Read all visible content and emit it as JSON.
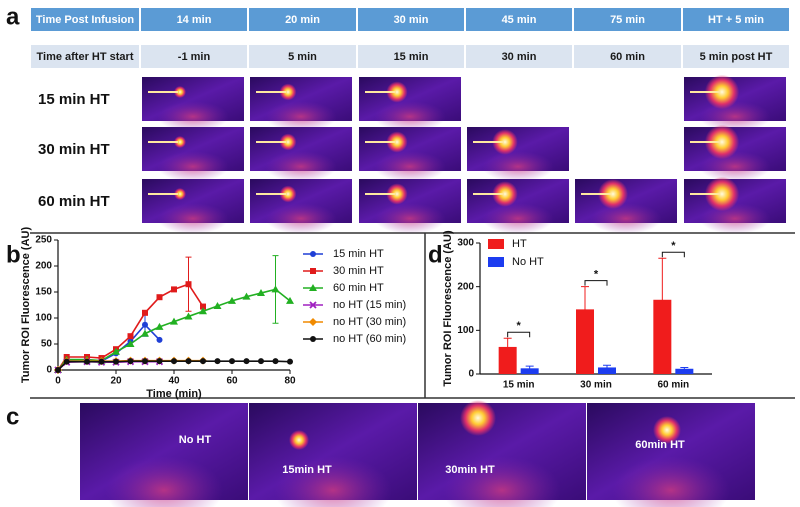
{
  "panel_a": {
    "label": "a",
    "header": [
      "Time Post Infusion",
      "14 min",
      "20 min",
      "30 min",
      "45 min",
      "75 min",
      "HT + 5 min"
    ],
    "subheader": [
      "Time after HT start",
      "-1 min",
      "5 min",
      "15 min",
      "30 min",
      "60 min",
      "5 min post HT"
    ],
    "rows": [
      "15 min HT",
      "30 min HT",
      "60 min HT"
    ]
  },
  "panel_c": {
    "label": "c",
    "images": [
      "No HT",
      "15min HT",
      "30min HT",
      "60min HT"
    ]
  },
  "chart_data": [
    {
      "label": "b",
      "type": "line",
      "x_label": "Time (min)",
      "y_label": "Tumor ROI Fluorescence (AU)",
      "xlim": [
        0,
        80
      ],
      "xticks": [
        0,
        20,
        40,
        60,
        80
      ],
      "ylim": [
        0,
        250
      ],
      "yticks": [
        0,
        50,
        100,
        150,
        200,
        250
      ],
      "series": [
        {
          "name": "15 min HT",
          "color": "#1f3fd6",
          "marker": "circle",
          "x": [
            0,
            3,
            10,
            15,
            20,
            25,
            30,
            35
          ],
          "values": [
            0,
            18,
            17,
            17,
            32,
            55,
            87,
            58
          ],
          "errors": [
            null,
            null,
            null,
            null,
            null,
            null,
            22,
            null
          ]
        },
        {
          "name": "30 min HT",
          "color": "#e01b1b",
          "marker": "square",
          "x": [
            0,
            3,
            10,
            15,
            20,
            25,
            30,
            35,
            40,
            45,
            50
          ],
          "values": [
            0,
            25,
            25,
            23,
            40,
            65,
            110,
            140,
            155,
            165,
            122
          ],
          "errors": [
            null,
            null,
            null,
            null,
            null,
            null,
            null,
            null,
            null,
            52,
            null
          ]
        },
        {
          "name": "60 min HT",
          "color": "#22b022",
          "marker": "triangle",
          "x": [
            0,
            3,
            10,
            15,
            20,
            25,
            30,
            35,
            40,
            45,
            50,
            55,
            60,
            65,
            70,
            75,
            80
          ],
          "values": [
            0,
            20,
            20,
            18,
            35,
            50,
            70,
            83,
            93,
            103,
            113,
            123,
            133,
            141,
            148,
            155,
            133
          ],
          "errors": [
            null,
            null,
            null,
            null,
            null,
            null,
            null,
            null,
            null,
            null,
            null,
            null,
            null,
            null,
            null,
            65,
            null
          ]
        },
        {
          "name": "no HT (15 min)",
          "color": "#a020c0",
          "marker": "cross",
          "x": [
            0,
            3,
            10,
            15,
            20,
            25,
            30,
            35
          ],
          "values": [
            0,
            15,
            16,
            15,
            15,
            16,
            16,
            16
          ],
          "errors": [
            null,
            null,
            null,
            null,
            null,
            null,
            null,
            null
          ]
        },
        {
          "name": "no HT (30 min)",
          "color": "#f08a00",
          "marker": "diamond",
          "x": [
            0,
            3,
            10,
            15,
            20,
            25,
            30,
            35,
            40,
            45,
            50
          ],
          "values": [
            0,
            17,
            17,
            17,
            17,
            18,
            18,
            18,
            18,
            18,
            18
          ],
          "errors": [
            null,
            null,
            null,
            null,
            null,
            null,
            null,
            null,
            null,
            null,
            null
          ]
        },
        {
          "name": "no HT (60 min)",
          "color": "#111111",
          "marker": "circle",
          "x": [
            0,
            3,
            10,
            15,
            20,
            25,
            30,
            35,
            40,
            45,
            50,
            55,
            60,
            65,
            70,
            75,
            80
          ],
          "values": [
            0,
            16,
            16,
            16,
            16,
            17,
            17,
            17,
            17,
            17,
            17,
            17,
            17,
            17,
            17,
            17,
            16
          ],
          "errors": [
            null,
            null,
            null,
            null,
            null,
            null,
            null,
            null,
            null,
            null,
            null,
            null,
            null,
            null,
            null,
            null,
            null
          ]
        }
      ]
    },
    {
      "label": "d",
      "type": "bar",
      "y_label": "Tumor ROI Fluorescence (AU)",
      "categories": [
        "15 min",
        "30 min",
        "60 min"
      ],
      "ylim": [
        0,
        300
      ],
      "yticks": [
        0,
        100,
        200,
        300
      ],
      "series": [
        {
          "name": "HT",
          "color": "#f01c1c",
          "values": [
            62,
            148,
            170
          ],
          "errors": [
            20,
            52,
            95
          ]
        },
        {
          "name": "No HT",
          "color": "#1c3cf0",
          "values": [
            13,
            15,
            12
          ],
          "errors": [
            5,
            5,
            3
          ]
        }
      ],
      "annotations": [
        "*",
        "*",
        "*"
      ]
    }
  ]
}
